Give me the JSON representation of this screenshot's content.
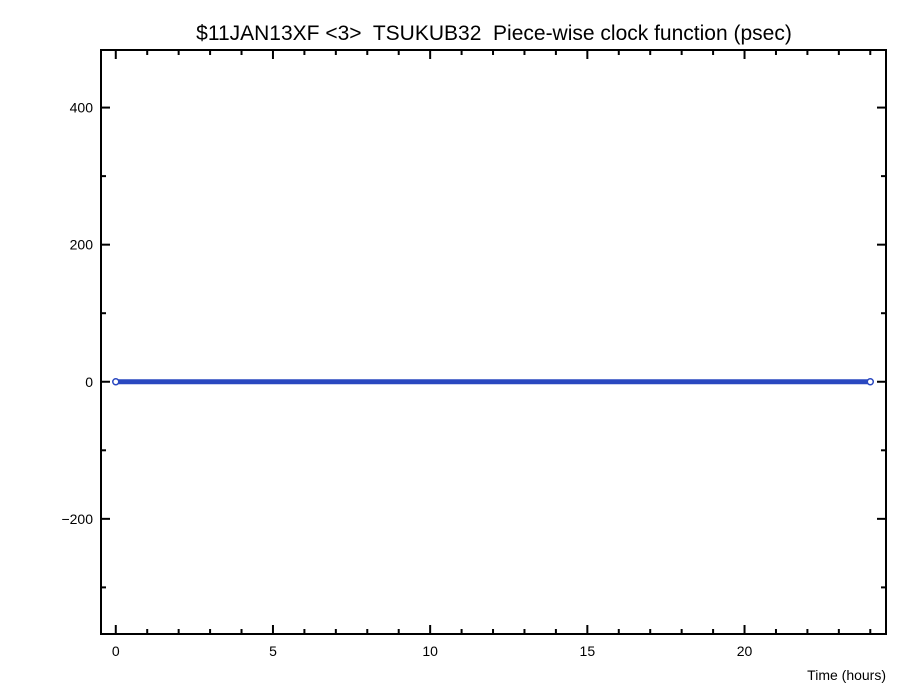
{
  "chart_data": {
    "type": "line",
    "title": "$11JAN13XF <3>  TSUKUB32  Piece-wise clock function (psec)",
    "xlabel": "Time (hours)",
    "ylabel": "",
    "xlim": [
      -0.47,
      24.5
    ],
    "ylim": [
      -368,
      484
    ],
    "xticks": [
      0,
      5,
      10,
      15,
      20
    ],
    "yticks": [
      -200,
      0,
      200,
      400
    ],
    "xtick_labels": [
      "0",
      "5",
      "10",
      "15",
      "20"
    ],
    "ytick_labels": [
      "−200",
      "0",
      "200",
      "400"
    ],
    "grid": false,
    "series": [
      {
        "x": [
          0,
          24
        ],
        "y": [
          0,
          0
        ],
        "color": "#2a48c0",
        "marker": "open-circle"
      }
    ]
  }
}
